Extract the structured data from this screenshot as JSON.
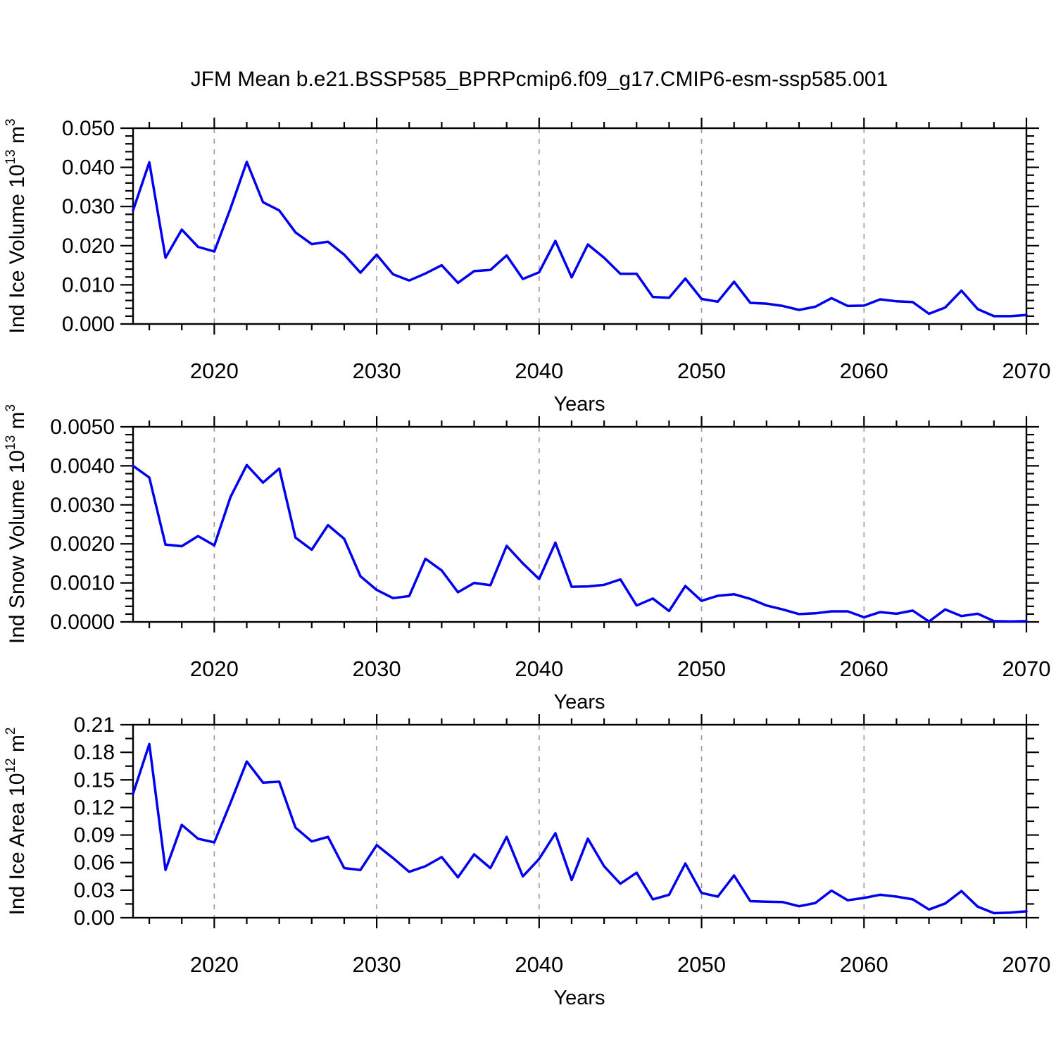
{
  "title": "JFM Mean b.e21.BSSP585_BPRPcmip6.f09_g17.CMIP6-esm-ssp585.001",
  "years": [
    2015,
    2016,
    2017,
    2018,
    2019,
    2020,
    2021,
    2022,
    2023,
    2024,
    2025,
    2026,
    2027,
    2028,
    2029,
    2030,
    2031,
    2032,
    2033,
    2034,
    2035,
    2036,
    2037,
    2038,
    2039,
    2040,
    2041,
    2042,
    2043,
    2044,
    2045,
    2046,
    2047,
    2048,
    2049,
    2050,
    2051,
    2052,
    2053,
    2054,
    2055,
    2056,
    2057,
    2058,
    2059,
    2060,
    2061,
    2062,
    2063,
    2064,
    2065,
    2066,
    2067,
    2068,
    2069,
    2070
  ],
  "x_axis": {
    "label": "Years",
    "start": 2015,
    "end": 2070,
    "tick_labels": [
      "2020",
      "2030",
      "2040",
      "2050",
      "2060",
      "2070"
    ],
    "minor_step": 2,
    "gridline_years": [
      2020,
      2030,
      2040,
      2050,
      2060
    ]
  },
  "chart_data": [
    {
      "type": "line",
      "color": "#0000ee",
      "ylabel": "Ind Ice Volume 10^13 m^3",
      "ylabel_base": "Ind Ice Volume 10",
      "ylabel_exp": "13",
      "ylabel_unit": " m",
      "ylabel_unit_exp": "3",
      "ylim": [
        0,
        0.05
      ],
      "ytick_labels": [
        "0.000",
        "0.010",
        "0.020",
        "0.030",
        "0.040",
        "0.050"
      ],
      "yminor_step": 0.002,
      "values": [
        0.029,
        0.0413,
        0.0169,
        0.0241,
        0.0197,
        0.0185,
        0.0295,
        0.0414,
        0.0311,
        0.029,
        0.0234,
        0.0204,
        0.021,
        0.0177,
        0.0131,
        0.0177,
        0.0127,
        0.0111,
        0.0129,
        0.015,
        0.0105,
        0.0135,
        0.0138,
        0.0175,
        0.0115,
        0.0132,
        0.0212,
        0.0119,
        0.0203,
        0.0169,
        0.0128,
        0.0128,
        0.0069,
        0.0067,
        0.0116,
        0.0064,
        0.0057,
        0.0108,
        0.0054,
        0.0052,
        0.0046,
        0.0036,
        0.0044,
        0.0066,
        0.0046,
        0.0047,
        0.0063,
        0.0058,
        0.0056,
        0.0026,
        0.0042,
        0.0085,
        0.0038,
        0.002,
        0.002,
        0.0023
      ]
    },
    {
      "type": "line",
      "color": "#0000ee",
      "ylabel": "Ind Snow Volume 10^13 m^3",
      "ylabel_base": "Ind Snow Volume 10",
      "ylabel_exp": "13",
      "ylabel_unit": " m",
      "ylabel_unit_exp": "3",
      "ylim": [
        0,
        0.005
      ],
      "ytick_labels": [
        "0.0000",
        "0.0010",
        "0.0020",
        "0.0030",
        "0.0040",
        "0.0050"
      ],
      "yminor_step": 0.0002,
      "values": [
        0.004,
        0.0037,
        0.00198,
        0.00194,
        0.0022,
        0.00196,
        0.0032,
        0.00402,
        0.00357,
        0.00393,
        0.00216,
        0.00185,
        0.00248,
        0.00213,
        0.00117,
        0.00082,
        0.00061,
        0.00066,
        0.00162,
        0.00132,
        0.00076,
        0.001,
        0.00094,
        0.00195,
        0.0015,
        0.0011,
        0.00203,
        0.0009,
        0.00091,
        0.00095,
        0.00109,
        0.00042,
        0.0006,
        0.00028,
        0.00092,
        0.00054,
        0.00067,
        0.00071,
        0.00059,
        0.00042,
        0.00032,
        0.0002,
        0.00022,
        0.00027,
        0.00027,
        0.00012,
        0.00025,
        0.00021,
        0.00029,
        1e-05,
        0.00032,
        0.00015,
        0.00021,
        2e-05,
        1e-05,
        2e-05
      ]
    },
    {
      "type": "line",
      "color": "#0000ee",
      "ylabel": "Ind Ice Area 10^12 m^2",
      "ylabel_base": "Ind Ice Area 10",
      "ylabel_exp": "12",
      "ylabel_unit": " m",
      "ylabel_unit_exp": "2",
      "ylim": [
        0,
        0.21
      ],
      "ytick_labels": [
        "0.00",
        "0.03",
        "0.06",
        "0.09",
        "0.12",
        "0.15",
        "0.18",
        "0.21"
      ],
      "yminor_step": 0.015,
      "values": [
        0.135,
        0.189,
        0.052,
        0.101,
        0.086,
        0.082,
        0.125,
        0.17,
        0.147,
        0.148,
        0.098,
        0.083,
        0.088,
        0.054,
        0.052,
        0.079,
        0.065,
        0.05,
        0.056,
        0.066,
        0.044,
        0.069,
        0.054,
        0.088,
        0.045,
        0.064,
        0.092,
        0.041,
        0.086,
        0.056,
        0.037,
        0.049,
        0.02,
        0.025,
        0.059,
        0.027,
        0.023,
        0.046,
        0.018,
        0.0175,
        0.017,
        0.0125,
        0.016,
        0.0295,
        0.019,
        0.0215,
        0.025,
        0.023,
        0.02,
        0.009,
        0.0155,
        0.029,
        0.012,
        0.005,
        0.0055,
        0.007
      ]
    }
  ]
}
